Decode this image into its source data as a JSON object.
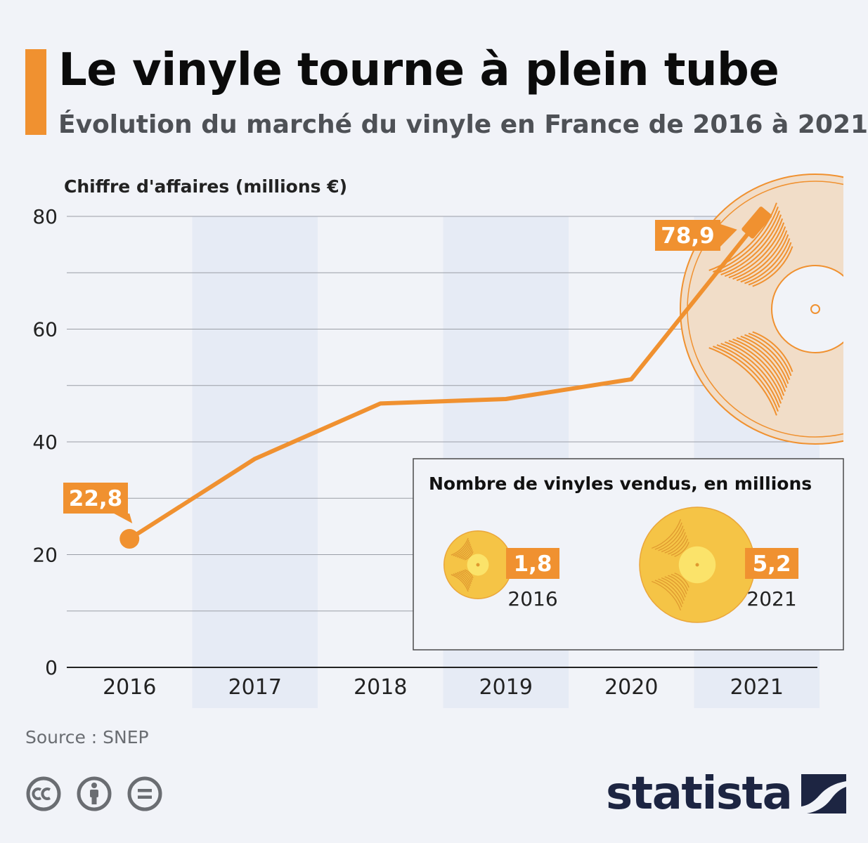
{
  "header": {
    "title": "Le vinyle tourne à plein tube",
    "subtitle": "Évolution du marché du vinyle en France de 2016 à 2021"
  },
  "chart_data": [
    {
      "type": "line",
      "ylabel": "Chiffre d'affaires (millions €)",
      "categories": [
        "2016",
        "2017",
        "2018",
        "2019",
        "2020",
        "2021"
      ],
      "series": [
        {
          "values": [
            22.8,
            37,
            46.8,
            47.6,
            51.1,
            78.9
          ]
        }
      ],
      "value_labels": [
        "22,8",
        "",
        "",
        "",
        "",
        "78,9"
      ],
      "ylim": [
        0,
        80
      ],
      "yticks": [
        0,
        20,
        40,
        60,
        80
      ],
      "grid": true,
      "color": "#f09130"
    },
    {
      "type": "bar",
      "title": "Nombre de vinyles vendus, en millions",
      "categories": [
        "2016",
        "2021"
      ],
      "values": [
        1.8,
        5.2
      ],
      "value_labels": [
        "1,8",
        "5,2"
      ],
      "color": "#f5c446"
    }
  ],
  "footer": {
    "source": "Source : SNEP",
    "brand": "statista",
    "license_icons": [
      "cc-icon",
      "attribution-icon",
      "no-derivatives-icon"
    ]
  },
  "colors": {
    "accent": "#f09130",
    "band": "#e6ebf5",
    "brand": "#1d2542"
  }
}
